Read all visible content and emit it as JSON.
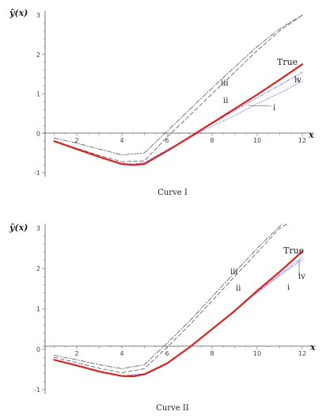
{
  "chart_data": [
    {
      "type": "line",
      "caption": "Curve I",
      "ylabel": "ŷ(x)",
      "xlabel": "x",
      "xlim": [
        0.5,
        12.5
      ],
      "ylim": [
        -1.1,
        3.1
      ],
      "x_ticks": [
        "2",
        "4",
        "6",
        "8",
        "10",
        "12"
      ],
      "y_ticks": [
        "-1",
        "0",
        "1",
        "2",
        "3"
      ],
      "series": [
        {
          "name": "True",
          "color": "#dd2222",
          "dash": "solid",
          "points": [
            [
              1,
              -0.2
            ],
            [
              2,
              -0.4
            ],
            [
              3,
              -0.6
            ],
            [
              4,
              -0.78
            ],
            [
              4.5,
              -0.8
            ],
            [
              5,
              -0.78
            ],
            [
              6,
              -0.45
            ],
            [
              7,
              -0.1
            ],
            [
              8,
              0.26
            ],
            [
              9,
              0.62
            ],
            [
              10,
              0.98
            ],
            [
              11,
              1.36
            ],
            [
              12,
              1.75
            ]
          ]
        },
        {
          "name": "i",
          "color": "#6a6aff",
          "dash": "dot",
          "points": [
            [
              1,
              -0.2
            ],
            [
              2,
              -0.4
            ],
            [
              3,
              -0.6
            ],
            [
              4,
              -0.76
            ],
            [
              4.5,
              -0.78
            ],
            [
              5,
              -0.74
            ],
            [
              6,
              -0.42
            ],
            [
              7,
              -0.12
            ],
            [
              8,
              0.18
            ],
            [
              9,
              0.45
            ],
            [
              10,
              0.75
            ],
            [
              11,
              1.02
            ],
            [
              12,
              1.32
            ]
          ]
        },
        {
          "name": "ii",
          "color": "#555555",
          "dash": "dash",
          "points": [
            [
              1,
              -0.2
            ],
            [
              2,
              -0.38
            ],
            [
              3,
              -0.56
            ],
            [
              4,
              -0.72
            ],
            [
              5,
              -0.7
            ],
            [
              6,
              -0.1
            ],
            [
              7,
              0.45
            ],
            [
              8,
              1.0
            ],
            [
              9,
              1.55
            ],
            [
              10,
              2.1
            ],
            [
              11,
              2.6
            ],
            [
              12,
              3.0
            ]
          ]
        },
        {
          "name": "iii",
          "color": "#555555",
          "dash": "dashdot",
          "points": [
            [
              1,
              -0.12
            ],
            [
              2,
              -0.25
            ],
            [
              3,
              -0.4
            ],
            [
              4,
              -0.55
            ],
            [
              5,
              -0.5
            ],
            [
              6,
              0.05
            ],
            [
              7,
              0.6
            ],
            [
              8,
              1.15
            ],
            [
              9,
              1.68
            ],
            [
              10,
              2.2
            ],
            [
              11,
              2.65
            ],
            [
              12,
              3.0
            ]
          ]
        },
        {
          "name": "iv",
          "color": "#6a6aff",
          "dash": "dotdash",
          "points": [
            [
              1,
              -0.2
            ],
            [
              2,
              -0.4
            ],
            [
              3,
              -0.6
            ],
            [
              4,
              -0.77
            ],
            [
              4.5,
              -0.79
            ],
            [
              5,
              -0.76
            ],
            [
              6,
              -0.44
            ],
            [
              7,
              -0.12
            ],
            [
              8,
              0.24
            ],
            [
              9,
              0.58
            ],
            [
              10,
              0.9
            ],
            [
              11,
              1.22
            ],
            [
              12,
              1.55
            ]
          ]
        }
      ]
    },
    {
      "type": "line",
      "caption": "Curve II",
      "ylabel": "ŷ(x)",
      "xlabel": "x",
      "xlim": [
        0.5,
        12.5
      ],
      "ylim": [
        -1.1,
        3.1
      ],
      "x_ticks": [
        "2",
        "4",
        "6",
        "8",
        "10",
        "12"
      ],
      "y_ticks": [
        "-1",
        "0",
        "1",
        "2",
        "3"
      ],
      "series": [
        {
          "name": "True",
          "color": "#dd2222",
          "dash": "solid",
          "points": [
            [
              1,
              -0.26
            ],
            [
              2,
              -0.4
            ],
            [
              3,
              -0.55
            ],
            [
              4,
              -0.66
            ],
            [
              4.5,
              -0.67
            ],
            [
              5,
              -0.62
            ],
            [
              6,
              -0.35
            ],
            [
              7,
              0.05
            ],
            [
              8,
              0.5
            ],
            [
              9,
              0.95
            ],
            [
              10,
              1.45
            ],
            [
              11,
              1.92
            ],
            [
              12,
              2.42
            ]
          ]
        },
        {
          "name": "i",
          "color": "#6a6aff",
          "dash": "dot",
          "points": [
            [
              1,
              -0.26
            ],
            [
              2,
              -0.4
            ],
            [
              3,
              -0.55
            ],
            [
              4,
              -0.66
            ],
            [
              5,
              -0.6
            ],
            [
              6,
              -0.34
            ],
            [
              7,
              0.05
            ],
            [
              8,
              0.5
            ],
            [
              9,
              0.95
            ],
            [
              10,
              1.4
            ],
            [
              11,
              1.82
            ],
            [
              12,
              2.22
            ]
          ]
        },
        {
          "name": "ii",
          "color": "#555555",
          "dash": "dash",
          "points": [
            [
              1,
              -0.2
            ],
            [
              2,
              -0.33
            ],
            [
              3,
              -0.47
            ],
            [
              4,
              -0.58
            ],
            [
              5,
              -0.48
            ],
            [
              6,
              0.05
            ],
            [
              7,
              0.6
            ],
            [
              8,
              1.2
            ],
            [
              9,
              1.8
            ],
            [
              10,
              2.4
            ],
            [
              11,
              3.0
            ],
            [
              11.3,
              3.1
            ]
          ]
        },
        {
          "name": "iii",
          "color": "#555555",
          "dash": "dashdot",
          "points": [
            [
              1,
              -0.15
            ],
            [
              2,
              -0.26
            ],
            [
              3,
              -0.38
            ],
            [
              4,
              -0.48
            ],
            [
              5,
              -0.38
            ],
            [
              6,
              0.15
            ],
            [
              7,
              0.7
            ],
            [
              8,
              1.3
            ],
            [
              9,
              1.9
            ],
            [
              10,
              2.5
            ],
            [
              11,
              3.05
            ],
            [
              11.1,
              3.1
            ]
          ]
        },
        {
          "name": "iv",
          "color": "#6a6aff",
          "dash": "dotdash",
          "points": [
            [
              1,
              -0.26
            ],
            [
              2,
              -0.4
            ],
            [
              3,
              -0.55
            ],
            [
              4,
              -0.66
            ],
            [
              5,
              -0.61
            ],
            [
              6,
              -0.35
            ],
            [
              7,
              0.05
            ],
            [
              8,
              0.5
            ],
            [
              9,
              0.96
            ],
            [
              10,
              1.42
            ],
            [
              11,
              1.85
            ],
            [
              12,
              2.28
            ]
          ]
        }
      ]
    }
  ]
}
